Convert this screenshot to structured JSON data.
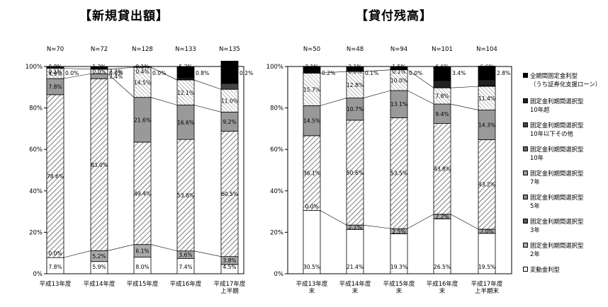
{
  "titles": {
    "left": "【新規貸出額】",
    "right": "【貸付残高】"
  },
  "legend": [
    {
      "label": "全期間固定金利型",
      "sub": "（うち証券化支援ローン）",
      "color": "#000000"
    },
    {
      "label": "固定金利期間選択型",
      "sub": "10年超",
      "color": "#222222"
    },
    {
      "label": "固定金利期間選択型",
      "sub": "10年以下その他",
      "color": "#444444"
    },
    {
      "label": "固定金利期間選択型",
      "sub": "10年",
      "color": "#666666"
    },
    {
      "label": "固定金利期間選択型",
      "sub": "7年",
      "color": "#999999"
    },
    {
      "label": "固定金利期間選択型",
      "sub": "5年",
      "color": "#888888"
    },
    {
      "label": "固定金利期間選択型",
      "sub": "3年",
      "color": "#555555"
    },
    {
      "label": "固定金利期間選択型",
      "sub": "2年",
      "color": "#aaaaaa"
    },
    {
      "label": "変動金利型",
      "sub": "",
      "color": "#ffffff"
    }
  ],
  "chart_data": [
    {
      "type": "bar",
      "stacked": true,
      "title": "【新規貸出額】",
      "ylim": [
        0,
        100
      ],
      "yticks": [
        "0%",
        "20%",
        "40%",
        "60%",
        "80%",
        "100%"
      ],
      "categories": [
        "平成13年度",
        "平成14年度",
        "平成15年度",
        "平成16年度",
        "平成17年度\n上半期"
      ],
      "n_labels": [
        "N=70",
        "N=72",
        "N=128",
        "N=133",
        "N=135"
      ],
      "bars": [
        [
          {
            "v": 7.8,
            "t": "7.8%",
            "c": "#ffffff"
          },
          {
            "v": 0.0,
            "t": "0.0%",
            "c": "#aaaaaa"
          },
          {
            "v": 78.6,
            "t": "78.6%",
            "c": "#ffffff"
          },
          {
            "v": 7.8,
            "t": "7.8%",
            "c": "#999999"
          },
          {
            "v": 4.9,
            "t": "4.9%",
            "c": "#ffffff"
          },
          {
            "v": 0.1,
            "t": "0.1%",
            "c": "#444444"
          },
          {
            "v": 0.0,
            "t": "0.0%",
            "c": "#222222"
          },
          {
            "v": 0.8,
            "t": "0.8%",
            "c": "#000000"
          }
        ],
        [
          {
            "v": 5.9,
            "t": "5.9%",
            "c": "#ffffff"
          },
          {
            "v": 5.2,
            "t": "5.2%",
            "c": "#aaaaaa"
          },
          {
            "v": 83.0,
            "t": "83.0%",
            "c": "#ffffff"
          },
          {
            "v": 2.4,
            "t": "2.4%",
            "c": "#999999"
          },
          {
            "v": 2.2,
            "t": "2.2%",
            "c": "#ffffff"
          },
          {
            "v": 0.0,
            "t": "0.0%",
            "c": "#444444"
          },
          {
            "v": 0.0,
            "t": "0.0%",
            "c": "#222222"
          },
          {
            "v": 1.2,
            "t": "1.2%",
            "c": "#000000"
          }
        ],
        [
          {
            "v": 8.0,
            "t": "8.0%",
            "c": "#ffffff"
          },
          {
            "v": 6.1,
            "t": "6.1%",
            "c": "#aaaaaa"
          },
          {
            "v": 49.4,
            "t": "49.4%",
            "c": "#ffffff"
          },
          {
            "v": 21.6,
            "t": "21.6%",
            "c": "#999999"
          },
          {
            "v": 14.5,
            "t": "14.5%",
            "c": "#ffffff"
          },
          {
            "v": 0.4,
            "t": "0.4%",
            "c": "#444444"
          },
          {
            "v": 0.0,
            "t": "0.0%",
            "c": "#222222"
          },
          {
            "v": 0.1,
            "t": "0.1%",
            "c": "#000000"
          }
        ],
        [
          {
            "v": 7.4,
            "t": "7.4%",
            "c": "#ffffff"
          },
          {
            "v": 3.6,
            "t": "3.6%",
            "c": "#aaaaaa"
          },
          {
            "v": 53.8,
            "t": "53.8%",
            "c": "#ffffff"
          },
          {
            "v": 16.6,
            "t": "16.6%",
            "c": "#999999"
          },
          {
            "v": 12.1,
            "t": "12.1%",
            "c": "#ffffff"
          },
          {
            "v": 0.3,
            "t": "(0.3%)",
            "c": "#444444"
          },
          {
            "v": 0.8,
            "t": "0.8%",
            "c": "#222222"
          },
          {
            "v": 5.3,
            "t": "5.3%",
            "c": "#000000"
          }
        ],
        [
          {
            "v": 4.5,
            "t": "4.5%",
            "c": "#ffffff"
          },
          {
            "v": 3.8,
            "t": "3.8%",
            "c": "#aaaaaa"
          },
          {
            "v": 60.5,
            "t": "60.5%",
            "c": "#ffffff"
          },
          {
            "v": 9.2,
            "t": "9.2%",
            "c": "#999999"
          },
          {
            "v": 11.0,
            "t": "11.0%",
            "c": "#ffffff"
          },
          {
            "v": 2.8,
            "t": "(2.8%)",
            "c": "#444444"
          },
          {
            "v": 0.2,
            "t": "0.2%",
            "c": "#222222"
          },
          {
            "v": 10.6,
            "t": "10.6%",
            "c": "#000000"
          }
        ]
      ],
      "extra_labels": [
        "0.1%",
        "0.4%",
        "0.2%",
        "0.0%"
      ]
    },
    {
      "type": "bar",
      "stacked": true,
      "title": "【貸付残高】",
      "ylim": [
        0,
        100
      ],
      "yticks": [
        "0%",
        "20%",
        "40%",
        "60%",
        "80%",
        "100%"
      ],
      "categories": [
        "平成13年度\n末",
        "平成14年度\n末",
        "平成15年度\n末",
        "平成16年度\n末",
        "平成17年度\n上半期末"
      ],
      "n_labels": [
        "N=50",
        "N=48",
        "N=94",
        "N=101",
        "N=104"
      ],
      "bars": [
        [
          {
            "v": 30.5,
            "t": "30.5%",
            "c": "#ffffff"
          },
          {
            "v": 0.0,
            "t": "0.0%",
            "c": "#aaaaaa"
          },
          {
            "v": 36.1,
            "t": "36.1%",
            "c": "#ffffff"
          },
          {
            "v": 14.5,
            "t": "14.5%",
            "c": "#999999"
          },
          {
            "v": 15.7,
            "t": "15.7%",
            "c": "#ffffff"
          },
          {
            "v": 0.0,
            "t": "0.0%",
            "c": "#444444"
          },
          {
            "v": 0.2,
            "t": "0.2%",
            "c": "#222222"
          },
          {
            "v": 3.1,
            "t": "3.1%",
            "c": "#000000"
          }
        ],
        [
          {
            "v": 21.4,
            "t": "21.4%",
            "c": "#ffffff"
          },
          {
            "v": 2.1,
            "t": "2.1%",
            "c": "#aaaaaa"
          },
          {
            "v": 50.6,
            "t": "50.6%",
            "c": "#ffffff"
          },
          {
            "v": 10.7,
            "t": "10.7%",
            "c": "#999999"
          },
          {
            "v": 12.8,
            "t": "12.8%",
            "c": "#ffffff"
          },
          {
            "v": 0.0,
            "t": "0.0%",
            "c": "#444444"
          },
          {
            "v": 0.1,
            "t": "0.1%",
            "c": "#222222"
          },
          {
            "v": 2.1,
            "t": "2.1%",
            "c": "#000000"
          }
        ],
        [
          {
            "v": 19.3,
            "t": "19.3%",
            "c": "#ffffff"
          },
          {
            "v": 2.5,
            "t": "2.5%",
            "c": "#aaaaaa"
          },
          {
            "v": 53.5,
            "t": "53.5%",
            "c": "#ffffff"
          },
          {
            "v": 13.1,
            "t": "13.1%",
            "c": "#999999"
          },
          {
            "v": 10.0,
            "t": "10.0%",
            "c": "#ffffff"
          },
          {
            "v": 0.1,
            "t": "0.1%",
            "c": "#444444"
          },
          {
            "v": 0.0,
            "t": "0.0%",
            "c": "#222222"
          },
          {
            "v": 1.5,
            "t": "1.5%",
            "c": "#000000"
          }
        ],
        [
          {
            "v": 26.5,
            "t": "26.5%",
            "c": "#ffffff"
          },
          {
            "v": 2.2,
            "t": "2.2%",
            "c": "#aaaaaa"
          },
          {
            "v": 43.8,
            "t": "43.8%",
            "c": "#ffffff"
          },
          {
            "v": 9.4,
            "t": "9.4%",
            "c": "#999999"
          },
          {
            "v": 7.8,
            "t": "7.8%",
            "c": "#ffffff"
          },
          {
            "v": 0.1,
            "t": "(0.1%)",
            "c": "#444444"
          },
          {
            "v": 3.4,
            "t": "3.4%",
            "c": "#222222"
          },
          {
            "v": 6.6,
            "t": "6.6%",
            "c": "#000000"
          }
        ],
        [
          {
            "v": 19.5,
            "t": "19.5%",
            "c": "#ffffff"
          },
          {
            "v": 2.0,
            "t": "2.0%",
            "c": "#aaaaaa"
          },
          {
            "v": 43.2,
            "t": "43.2%",
            "c": "#ffffff"
          },
          {
            "v": 14.3,
            "t": "14.3%",
            "c": "#999999"
          },
          {
            "v": 11.4,
            "t": "11.4%",
            "c": "#ffffff"
          },
          {
            "v": 0.4,
            "t": "(0.4%)",
            "c": "#444444"
          },
          {
            "v": 2.8,
            "t": "2.8%",
            "c": "#222222"
          },
          {
            "v": 6.6,
            "t": "6.6%",
            "c": "#000000"
          }
        ]
      ],
      "extra_labels": [
        "0.2%",
        "0.1%",
        "0.0%",
        "0.2%",
        "0.1%",
        "0.2%",
        "0.0%"
      ]
    }
  ]
}
